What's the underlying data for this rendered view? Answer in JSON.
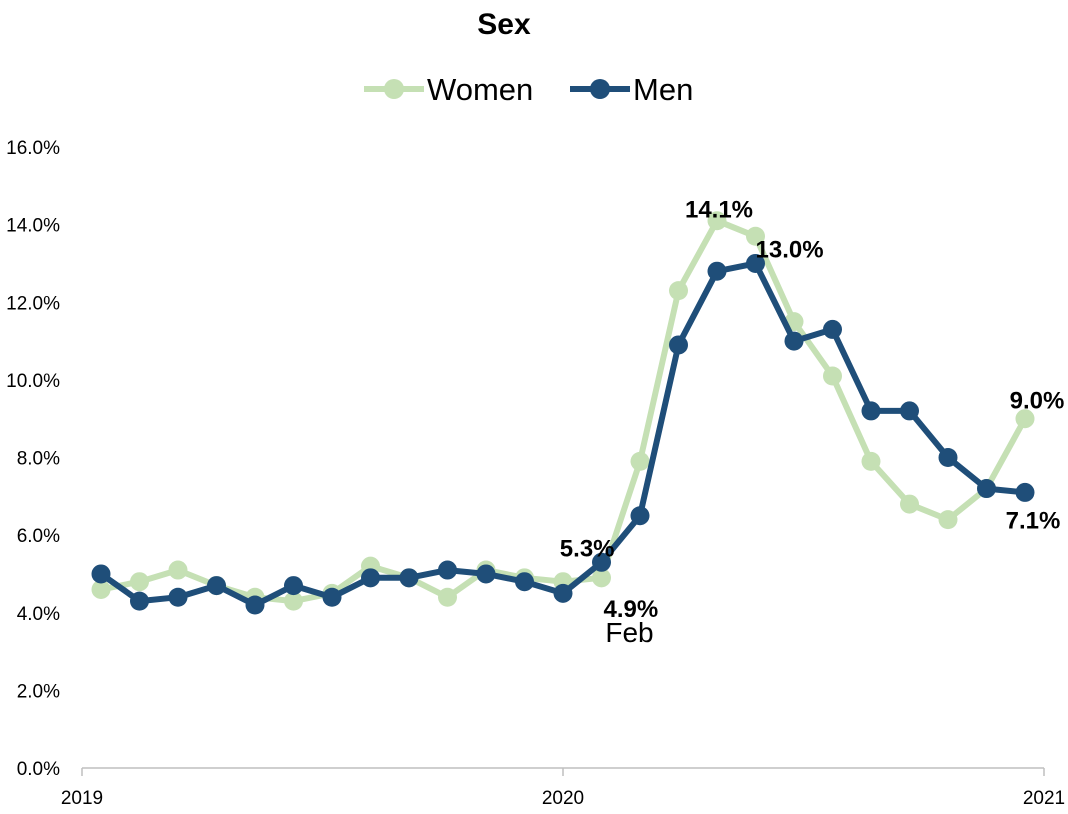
{
  "chart_data": {
    "type": "line",
    "title": "Sex",
    "xlabel": "",
    "ylabel": "",
    "ylim": [
      0,
      16
    ],
    "yticks": [
      "0.0%",
      "2.0%",
      "4.0%",
      "6.0%",
      "8.0%",
      "10.0%",
      "12.0%",
      "14.0%",
      "16.0%"
    ],
    "xticks": [
      "2019",
      "2020",
      "2021"
    ],
    "x": [
      "2019-01",
      "2019-02",
      "2019-03",
      "2019-04",
      "2019-05",
      "2019-06",
      "2019-07",
      "2019-08",
      "2019-09",
      "2019-10",
      "2019-11",
      "2019-12",
      "2020-01",
      "2020-02",
      "2020-03",
      "2020-04",
      "2020-05",
      "2020-06",
      "2020-07",
      "2020-08",
      "2020-09",
      "2020-10",
      "2020-11",
      "2020-12",
      "2021-01"
    ],
    "legend_position": "top",
    "grid": false,
    "series": [
      {
        "name": "Women",
        "color": "#c5e0b4",
        "values": [
          4.6,
          4.8,
          5.1,
          4.7,
          4.4,
          4.3,
          4.5,
          5.2,
          4.9,
          4.4,
          5.1,
          4.9,
          4.8,
          4.9,
          7.9,
          12.3,
          14.1,
          13.7,
          11.5,
          10.1,
          7.9,
          6.8,
          6.4,
          7.2,
          9.0
        ]
      },
      {
        "name": "Men",
        "color": "#1f4e79",
        "values": [
          5.0,
          4.3,
          4.4,
          4.7,
          4.2,
          4.7,
          4.4,
          4.9,
          4.9,
          5.1,
          5.0,
          4.8,
          4.5,
          5.3,
          6.5,
          10.9,
          12.8,
          13.0,
          11.0,
          11.3,
          9.2,
          9.2,
          8.0,
          7.2,
          7.1
        ]
      }
    ],
    "data_labels": [
      {
        "series": 1,
        "index": 13,
        "text": "5.3%"
      },
      {
        "series": 0,
        "index": 13,
        "text": "4.9%"
      },
      {
        "series": 0,
        "index": 16,
        "text": "14.1%"
      },
      {
        "series": 1,
        "index": 17,
        "text": "13.0%"
      },
      {
        "series": 0,
        "index": 24,
        "text": "9.0%"
      },
      {
        "series": 1,
        "index": 24,
        "text": "7.1%"
      }
    ],
    "annotations": [
      {
        "index": 13,
        "text": "Feb"
      }
    ]
  }
}
